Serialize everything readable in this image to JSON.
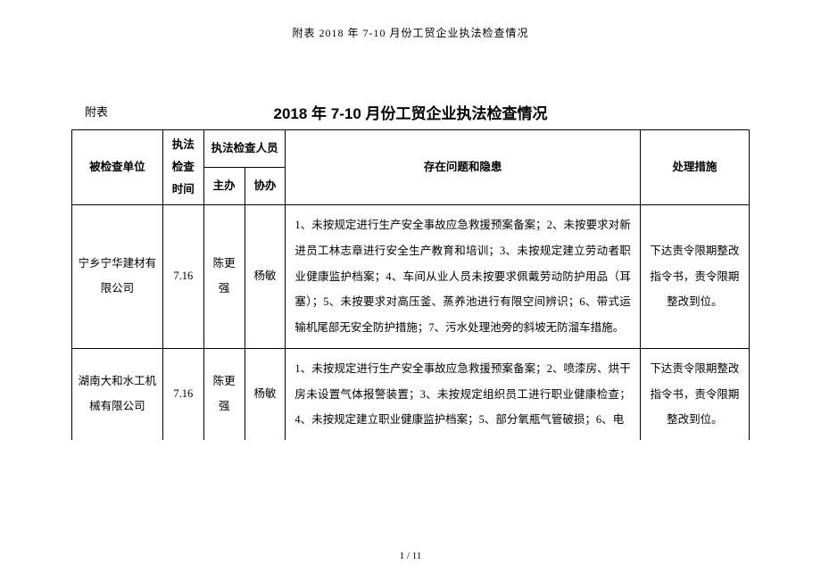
{
  "header_small": "附表 2018 年 7-10 月份工贸企业执法检查情况",
  "appendix_label": "附表",
  "title": "2018 年 7-10 月份工贸企业执法检查情况",
  "columns": {
    "unit": "被检查单位",
    "time": "执法检查时间",
    "staff": "执法检查人员",
    "staff_main": "主办",
    "staff_assist": "协办",
    "issues": "存在问题和隐患",
    "action": "处理措施"
  },
  "rows": [
    {
      "unit": "宁乡宁华建材有限公司",
      "time": "7.16",
      "staff_main": "陈更强",
      "staff_assist": "杨敏",
      "issues": "1、未按规定进行生产安全事故应急救援预案备案；2、未按要求对新进员工林志章进行安全生产教育和培训；3、未按规定建立劳动者职业健康监护档案；4、车间从业人员未按要求佩戴劳动防护用品（耳塞）；5、未按要求对高压釜、蒸养池进行有限空间辨识；6、带式运输机尾部无安全防护措施；7、污水处理池旁的斜坡无防溜车措施。",
      "action": "下达责令限期整改指令书，责令限期整改到位。"
    },
    {
      "unit": "湖南大和水工机械有限公司",
      "time": "7.16",
      "staff_main": "陈更强",
      "staff_assist": "杨敏",
      "issues": "1、未按规定进行生产安全事故应急救援预案备案；2、喷漆房、烘干房未设置气体报警装置；3、未按规定组织员工进行职业健康检查；4、未按规定建立职业健康监护档案；5、部分氧瓶气管破损；6、电",
      "action": "下达责令限期整改指令书，责令限期整改到位。"
    }
  ],
  "footer": "1 / 11"
}
